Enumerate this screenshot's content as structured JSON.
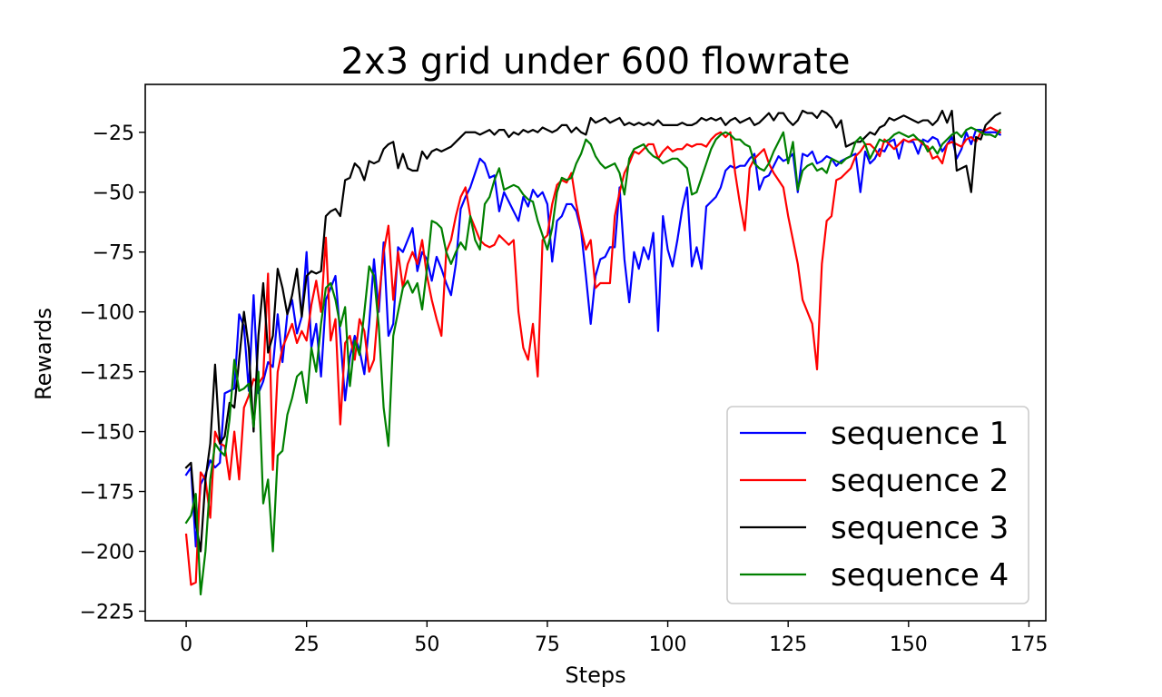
{
  "chart_data": {
    "type": "line",
    "title": "2x3 grid under 600 flowrate",
    "xlabel": "Steps",
    "ylabel": "Rewards",
    "xlim": [
      -8.5,
      178.5
    ],
    "ylim": [
      -229,
      -5
    ],
    "xticks": [
      0,
      25,
      50,
      75,
      100,
      125,
      150,
      175
    ],
    "yticks": [
      -225,
      -200,
      -175,
      -150,
      -125,
      -100,
      -75,
      -50,
      -25
    ],
    "xtick_labels": [
      "0",
      "25",
      "50",
      "75",
      "100",
      "125",
      "150",
      "175"
    ],
    "ytick_labels": [
      "−225",
      "−200",
      "−175",
      "−150",
      "−125",
      "−100",
      "−75",
      "−50",
      "−25"
    ],
    "grid": false,
    "legend_position": "lower right",
    "x_start": 0,
    "x_step": 1,
    "series": [
      {
        "name": "sequence 1",
        "color": "#0000ff",
        "values": [
          -168,
          -165,
          -198,
          -172,
          -168,
          -162,
          -165,
          -163,
          -134,
          -133,
          -132,
          -101,
          -106,
          -133,
          -93,
          -134,
          -129,
          -121,
          -123,
          -101,
          -121,
          -101,
          -95,
          -109,
          -102,
          -75,
          -115,
          -105,
          -127,
          -95,
          -90,
          -85,
          -110,
          -137,
          -119,
          -110,
          -116,
          -126,
          -105,
          -78,
          -100,
          -71,
          -110,
          -105,
          -73,
          -75,
          -70,
          -65,
          -83,
          -75,
          -78,
          -87,
          -77,
          -82,
          -88,
          -93,
          -80,
          -57,
          -52,
          -48,
          -42,
          -36,
          -38,
          -44,
          -43,
          -58,
          -50,
          -54,
          -58,
          -62,
          -52,
          -56,
          -49,
          -52,
          -50,
          -55,
          -79,
          -62,
          -60,
          -55,
          -55,
          -58,
          -66,
          -85,
          -105,
          -85,
          -78,
          -77,
          -73,
          -73,
          -48,
          -78,
          -96,
          -75,
          -82,
          -73,
          -78,
          -67,
          -108,
          -60,
          -74,
          -81,
          -70,
          -57,
          -48,
          -81,
          -73,
          -82,
          -56,
          -54,
          -52,
          -48,
          -41,
          -39,
          -40,
          -39,
          -39,
          -36,
          -34,
          -49,
          -44,
          -43,
          -39,
          -35,
          -37,
          -36,
          -34,
          -50,
          -34,
          -35,
          -33,
          -38,
          -37,
          -35,
          -36,
          -39,
          -37,
          -36,
          -35,
          -34,
          -50,
          -33,
          -38,
          -36,
          -32,
          -33,
          -29,
          -28,
          -36,
          -28,
          -29,
          -29,
          -34,
          -28,
          -29,
          -27,
          -28,
          -33,
          -30,
          -27,
          -36,
          -32,
          -25,
          -30,
          -24,
          -24,
          -25,
          -25,
          -25,
          -26
        ]
      },
      {
        "name": "sequence 2",
        "color": "#ff0000",
        "values": [
          -193,
          -214,
          -213,
          -167,
          -170,
          -186,
          -150,
          -155,
          -156,
          -170,
          -150,
          -170,
          -140,
          -135,
          -128,
          -130,
          -127,
          -84,
          -166,
          -125,
          -115,
          -110,
          -105,
          -113,
          -108,
          -112,
          -97,
          -87,
          -100,
          -69,
          -112,
          -103,
          -147,
          -113,
          -110,
          -120,
          -103,
          -108,
          -125,
          -120,
          -95,
          -75,
          -64,
          -95,
          -75,
          -90,
          -80,
          -75,
          -80,
          -70,
          -85,
          -95,
          -103,
          -110,
          -75,
          -70,
          -60,
          -52,
          -48,
          -60,
          -65,
          -70,
          -72,
          -73,
          -72,
          -68,
          -70,
          -72,
          -70,
          -100,
          -115,
          -120,
          -105,
          -127,
          -70,
          -68,
          -55,
          -47,
          -45,
          -46,
          -42,
          -55,
          -65,
          -74,
          -70,
          -90,
          -88,
          -88,
          -88,
          -60,
          -50,
          -42,
          -38,
          -33,
          -34,
          -32,
          -30,
          -30,
          -36,
          -33,
          -31,
          -33,
          -32,
          -32,
          -30,
          -31,
          -30,
          -30,
          -31,
          -28,
          -26,
          -25,
          -27,
          -25,
          -42,
          -55,
          -66,
          -40,
          -36,
          -34,
          -32,
          -38,
          -42,
          -45,
          -48,
          -60,
          -70,
          -80,
          -95,
          -100,
          -105,
          -124,
          -80,
          -62,
          -60,
          -45,
          -44,
          -42,
          -40,
          -35,
          -33,
          -30,
          -30,
          -32,
          -35,
          -28,
          -30,
          -32,
          -30,
          -28,
          -29,
          -28,
          -28,
          -30,
          -31,
          -36,
          -35,
          -38,
          -30,
          -29,
          -30,
          -31,
          -28,
          -27,
          -29,
          -25,
          -24,
          -23,
          -24,
          -25
        ]
      },
      {
        "name": "sequence 3",
        "color": "#000000",
        "values": [
          -165,
          -163,
          -188,
          -200,
          -170,
          -155,
          -122,
          -155,
          -152,
          -138,
          -140,
          -120,
          -100,
          -115,
          -150,
          -110,
          -88,
          -117,
          -110,
          -82,
          -90,
          -101,
          -93,
          -82,
          -102,
          -85,
          -83,
          -84,
          -83,
          -60,
          -58,
          -57,
          -60,
          -45,
          -44,
          -38,
          -40,
          -45,
          -37,
          -38,
          -37,
          -32,
          -30,
          -29,
          -40,
          -34,
          -40,
          -41,
          -41,
          -33,
          -36,
          -33,
          -32,
          -33,
          -32,
          -31,
          -29,
          -27,
          -25,
          -25,
          -25,
          -26,
          -25,
          -24,
          -26,
          -24,
          -24,
          -27,
          -25,
          -26,
          -24,
          -25,
          -24,
          -25,
          -23,
          -24,
          -25,
          -24,
          -22,
          -22,
          -25,
          -23,
          -25,
          -26,
          -19,
          -21,
          -20,
          -19,
          -21,
          -20,
          -19,
          -22,
          -21,
          -22,
          -21,
          -22,
          -21,
          -22,
          -20,
          -22,
          -22,
          -22,
          -22,
          -21,
          -22,
          -22,
          -21,
          -19,
          -20,
          -19,
          -20,
          -19,
          -22,
          -20,
          -19,
          -21,
          -20,
          -19,
          -22,
          -21,
          -19,
          -17,
          -20,
          -17,
          -17,
          -20,
          -22,
          -20,
          -16,
          -17,
          -17,
          -19,
          -16,
          -17,
          -19,
          -23,
          -20,
          -31,
          -30,
          -29,
          -29,
          -27,
          -25,
          -26,
          -23,
          -22,
          -19,
          -20,
          -19,
          -18,
          -19,
          -20,
          -21,
          -20,
          -20,
          -22,
          -20,
          -16,
          -21,
          -16,
          -41,
          -40,
          -39,
          -50,
          -27,
          -28,
          -22,
          -20,
          -18,
          -17
        ]
      },
      {
        "name": "sequence 4",
        "color": "#008000",
        "values": [
          -188,
          -185,
          -176,
          -218,
          -200,
          -170,
          -155,
          -158,
          -160,
          -145,
          -120,
          -133,
          -132,
          -130,
          -148,
          -125,
          -180,
          -170,
          -200,
          -160,
          -158,
          -143,
          -136,
          -127,
          -125,
          -138,
          -115,
          -125,
          -105,
          -90,
          -88,
          -95,
          -106,
          -98,
          -131,
          -112,
          -118,
          -100,
          -81,
          -85,
          -106,
          -140,
          -156,
          -110,
          -100,
          -90,
          -87,
          -92,
          -88,
          -99,
          -82,
          -62,
          -63,
          -65,
          -75,
          -80,
          -75,
          -71,
          -74,
          -60,
          -70,
          -74,
          -55,
          -52,
          -45,
          -40,
          -49,
          -48,
          -47,
          -48,
          -51,
          -53,
          -54,
          -62,
          -68,
          -74,
          -65,
          -50,
          -44,
          -45,
          -44,
          -38,
          -34,
          -28,
          -30,
          -35,
          -38,
          -40,
          -39,
          -38,
          -42,
          -51,
          -36,
          -32,
          -31,
          -30,
          -33,
          -35,
          -36,
          -38,
          -37,
          -36,
          -36,
          -38,
          -40,
          -51,
          -50,
          -44,
          -38,
          -32,
          -28,
          -26,
          -25,
          -26,
          -28,
          -28,
          -30,
          -31,
          -38,
          -40,
          -41,
          -38,
          -33,
          -29,
          -25,
          -38,
          -29,
          -49,
          -41,
          -39,
          -38,
          -41,
          -40,
          -42,
          -36,
          -37,
          -38,
          -36,
          -35,
          -29,
          -27,
          -30,
          -36,
          -32,
          -28,
          -29,
          -28,
          -26,
          -25,
          -26,
          -27,
          -26,
          -28,
          -29,
          -33,
          -31,
          -34,
          -30,
          -28,
          -26,
          -25,
          -27,
          -24,
          -23,
          -24,
          -25,
          -26,
          -26,
          -27,
          -24
        ]
      }
    ]
  }
}
